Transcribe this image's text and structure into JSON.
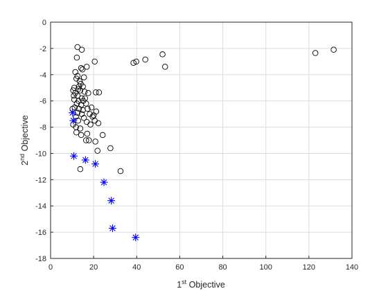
{
  "chart_data": {
    "type": "scatter",
    "xlabel": {
      "sup": "st",
      "base": "1",
      "rest": " Objective"
    },
    "ylabel": {
      "sup": "nd",
      "base": "2",
      "rest": " Objective"
    },
    "xlim": [
      0,
      140
    ],
    "ylim": [
      -18,
      0
    ],
    "xticks": [
      "0",
      "20",
      "40",
      "60",
      "80",
      "100",
      "120",
      "140"
    ],
    "yticks": [
      "0",
      "-2",
      "-4",
      "-6",
      "-8",
      "-10",
      "-12",
      "-14",
      "-16",
      "-18"
    ],
    "grid": true,
    "series": [
      {
        "marker": "circle",
        "color": "#000000",
        "points": [
          [
            12.5,
            -1.9
          ],
          [
            14.5,
            -2.1
          ],
          [
            20.5,
            -3.0
          ],
          [
            16.8,
            -3.4
          ],
          [
            14.2,
            -3.5
          ],
          [
            14.8,
            -3.6
          ],
          [
            11.5,
            -3.8
          ],
          [
            38.5,
            -3.1
          ],
          [
            39.8,
            -3.0
          ],
          [
            44.0,
            -2.85
          ],
          [
            52.0,
            -2.45
          ],
          [
            53.2,
            -3.4
          ],
          [
            123.0,
            -2.35
          ],
          [
            131.5,
            -2.1
          ],
          [
            12.2,
            -2.7
          ],
          [
            15.5,
            -4.2
          ],
          [
            12.0,
            -4.3
          ],
          [
            13.5,
            -4.5
          ],
          [
            14.0,
            -4.7
          ],
          [
            15.0,
            -4.9
          ],
          [
            11.0,
            -5.0
          ],
          [
            12.8,
            -5.1
          ],
          [
            13.8,
            -5.2
          ],
          [
            15.8,
            -5.3
          ],
          [
            10.5,
            -5.2
          ],
          [
            17.5,
            -5.4
          ],
          [
            11.5,
            -5.4
          ],
          [
            12.5,
            -5.6
          ],
          [
            14.5,
            -5.8
          ],
          [
            16.0,
            -5.8
          ],
          [
            11.0,
            -5.9
          ],
          [
            13.0,
            -6.0
          ],
          [
            15.2,
            -6.0
          ],
          [
            12.2,
            -6.2
          ],
          [
            14.2,
            -6.3
          ],
          [
            16.5,
            -6.2
          ],
          [
            11.2,
            -6.5
          ],
          [
            13.2,
            -6.6
          ],
          [
            15.0,
            -6.7
          ],
          [
            17.2,
            -6.6
          ],
          [
            12.5,
            -6.9
          ],
          [
            14.5,
            -7.0
          ],
          [
            18.2,
            -7.0
          ],
          [
            19.5,
            -7.2
          ],
          [
            20.0,
            -7.1
          ],
          [
            21.2,
            -6.8
          ],
          [
            11.8,
            -7.2
          ],
          [
            12.8,
            -7.5
          ],
          [
            15.5,
            -7.3
          ],
          [
            16.8,
            -7.6
          ],
          [
            18.5,
            -7.8
          ],
          [
            20.5,
            -7.5
          ],
          [
            22.2,
            -7.7
          ],
          [
            13.8,
            -8.1
          ],
          [
            12.0,
            -8.4
          ],
          [
            14.2,
            -8.6
          ],
          [
            17.0,
            -8.5
          ],
          [
            24.2,
            -8.6
          ],
          [
            16.5,
            -9.0
          ],
          [
            17.8,
            -9.0
          ],
          [
            20.8,
            -9.1
          ],
          [
            21.8,
            -9.8
          ],
          [
            27.8,
            -9.6
          ],
          [
            32.5,
            -11.35
          ],
          [
            13.8,
            -11.2
          ],
          [
            21.0,
            -5.35
          ],
          [
            22.5,
            -5.35
          ],
          [
            12.5,
            -4.1
          ],
          [
            13.2,
            -4.9
          ],
          [
            10.8,
            -5.6
          ],
          [
            10.2,
            -6.6
          ],
          [
            11.8,
            -8.0
          ],
          [
            10.5,
            -7.8
          ],
          [
            19.0,
            -6.5
          ]
        ]
      },
      {
        "marker": "asterisk",
        "color": "#0000FF",
        "points": [
          [
            10.2,
            -6.9
          ],
          [
            10.6,
            -7.5
          ],
          [
            10.8,
            -10.2
          ],
          [
            16.2,
            -10.5
          ],
          [
            20.8,
            -10.8
          ],
          [
            24.8,
            -12.2
          ],
          [
            28.2,
            -13.6
          ],
          [
            28.8,
            -15.7
          ],
          [
            39.5,
            -16.4
          ]
        ]
      }
    ]
  }
}
